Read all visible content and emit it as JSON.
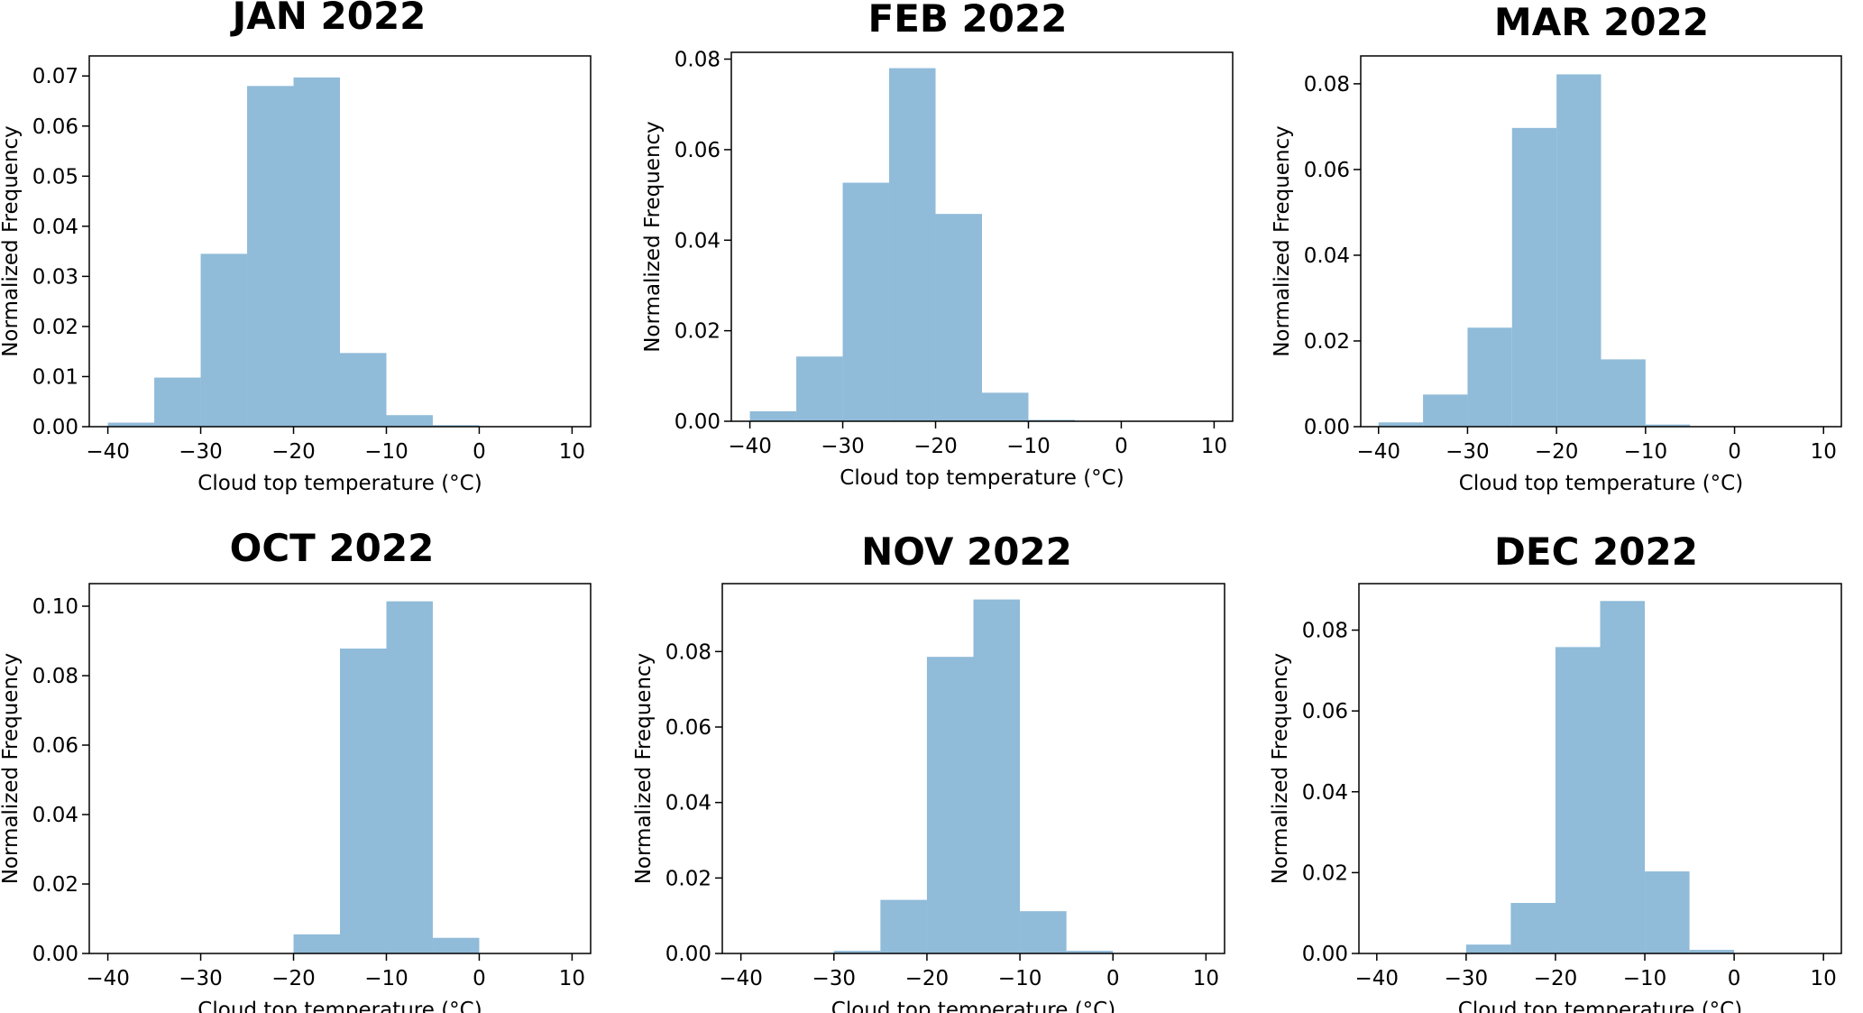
{
  "style": {
    "bar_color": "#90bbd9",
    "axis_color": "#000000",
    "background": "#ffffff"
  },
  "chart_data": [
    {
      "type": "bar",
      "title": "JAN 2022",
      "xlabel": "Cloud top temperature (°C)",
      "ylabel": "Normalized Frequency",
      "xlim": [
        -42,
        12
      ],
      "ylim": [
        0,
        0.074
      ],
      "xticks": [
        -40,
        -30,
        -20,
        -10,
        0,
        10
      ],
      "xtick_labels": [
        "−40",
        "−30",
        "−20",
        "−10",
        "0",
        "10"
      ],
      "yticks": [
        0,
        0.01,
        0.02,
        0.03,
        0.04,
        0.05,
        0.06,
        0.07
      ],
      "ytick_labels": [
        "0.00",
        "0.01",
        "0.02",
        "0.03",
        "0.04",
        "0.05",
        "0.06",
        "0.07"
      ],
      "bins": [
        [
          -40,
          -35
        ],
        [
          -35,
          -30
        ],
        [
          -30,
          -25
        ],
        [
          -25,
          -20
        ],
        [
          -20,
          -15
        ],
        [
          -15,
          -10
        ],
        [
          -10,
          -5
        ],
        [
          -5,
          0
        ]
      ],
      "values": [
        0.0008,
        0.0098,
        0.0345,
        0.068,
        0.0697,
        0.0147,
        0.0023,
        0.0003
      ]
    },
    {
      "type": "bar",
      "title": "FEB 2022",
      "xlabel": "Cloud top temperature (°C)",
      "ylabel": "Normalized Frequency",
      "xlim": [
        -42,
        12
      ],
      "ylim": [
        0,
        0.0815
      ],
      "xticks": [
        -40,
        -30,
        -20,
        -10,
        0,
        10
      ],
      "xtick_labels": [
        "−40",
        "−30",
        "−20",
        "−10",
        "0",
        "10"
      ],
      "yticks": [
        0,
        0.02,
        0.04,
        0.06,
        0.08
      ],
      "ytick_labels": [
        "0.00",
        "0.02",
        "0.04",
        "0.06",
        "0.08"
      ],
      "bins": [
        [
          -40,
          -35
        ],
        [
          -35,
          -30
        ],
        [
          -30,
          -25
        ],
        [
          -25,
          -20
        ],
        [
          -20,
          -15
        ],
        [
          -15,
          -10
        ],
        [
          -10,
          -5
        ]
      ],
      "values": [
        0.0022,
        0.0143,
        0.0527,
        0.078,
        0.0458,
        0.0063,
        0.0003
      ]
    },
    {
      "type": "bar",
      "title": "MAR 2022",
      "xlabel": "Cloud top temperature (°C)",
      "ylabel": "Normalized Frequency",
      "xlim": [
        -42,
        12
      ],
      "ylim": [
        0,
        0.0865
      ],
      "xticks": [
        -40,
        -30,
        -20,
        -10,
        0,
        10
      ],
      "xtick_labels": [
        "−40",
        "−30",
        "−20",
        "−10",
        "0",
        "10"
      ],
      "yticks": [
        0,
        0.02,
        0.04,
        0.06,
        0.08
      ],
      "ytick_labels": [
        "0.00",
        "0.02",
        "0.04",
        "0.06",
        "0.08"
      ],
      "bins": [
        [
          -40,
          -35
        ],
        [
          -35,
          -30
        ],
        [
          -30,
          -25
        ],
        [
          -25,
          -20
        ],
        [
          -20,
          -15
        ],
        [
          -15,
          -10
        ],
        [
          -10,
          -5
        ]
      ],
      "values": [
        0.001,
        0.0075,
        0.0231,
        0.0697,
        0.0822,
        0.0157,
        0.0005
      ]
    },
    {
      "type": "bar",
      "title": "OCT 2022",
      "xlabel": "Cloud top temperature (°C)",
      "ylabel": "Normalized Frequency",
      "xlim": [
        -42,
        12
      ],
      "ylim": [
        0,
        0.1065
      ],
      "xticks": [
        -40,
        -30,
        -20,
        -10,
        0,
        10
      ],
      "xtick_labels": [
        "−40",
        "−30",
        "−20",
        "−10",
        "0",
        "10"
      ],
      "yticks": [
        0,
        0.02,
        0.04,
        0.06,
        0.08,
        0.1
      ],
      "ytick_labels": [
        "0.00",
        "0.02",
        "0.04",
        "0.06",
        "0.08",
        "0.10"
      ],
      "bins": [
        [
          -20,
          -15
        ],
        [
          -15,
          -10
        ],
        [
          -10,
          -5
        ],
        [
          -5,
          0
        ]
      ],
      "values": [
        0.0055,
        0.0878,
        0.1014,
        0.0045
      ]
    },
    {
      "type": "bar",
      "title": "NOV 2022",
      "xlabel": "Cloud top temperature (°C)",
      "ylabel": "Normalized Frequency",
      "xlim": [
        -42,
        12
      ],
      "ylim": [
        0,
        0.098
      ],
      "xticks": [
        -40,
        -30,
        -20,
        -10,
        0,
        10
      ],
      "xtick_labels": [
        "−40",
        "−30",
        "−20",
        "−10",
        "0",
        "10"
      ],
      "yticks": [
        0,
        0.02,
        0.04,
        0.06,
        0.08
      ],
      "ytick_labels": [
        "0.00",
        "0.02",
        "0.04",
        "0.06",
        "0.08"
      ],
      "bins": [
        [
          -30,
          -25
        ],
        [
          -25,
          -20
        ],
        [
          -20,
          -15
        ],
        [
          -15,
          -10
        ],
        [
          -10,
          -5
        ],
        [
          -5,
          0
        ]
      ],
      "values": [
        0.0007,
        0.0142,
        0.0786,
        0.0938,
        0.0112,
        0.0007
      ]
    },
    {
      "type": "bar",
      "title": "DEC 2022",
      "xlabel": "Cloud top temperature (°C)",
      "ylabel": "Normalized Frequency",
      "xlim": [
        -42,
        12
      ],
      "ylim": [
        0,
        0.0915
      ],
      "xticks": [
        -40,
        -30,
        -20,
        -10,
        0,
        10
      ],
      "xtick_labels": [
        "−40",
        "−30",
        "−20",
        "−10",
        "0",
        "10"
      ],
      "yticks": [
        0,
        0.02,
        0.04,
        0.06,
        0.08
      ],
      "ytick_labels": [
        "0.00",
        "0.02",
        "0.04",
        "0.06",
        "0.08"
      ],
      "bins": [
        [
          -30,
          -25
        ],
        [
          -25,
          -20
        ],
        [
          -20,
          -15
        ],
        [
          -15,
          -10
        ],
        [
          -10,
          -5
        ],
        [
          -5,
          0
        ]
      ],
      "values": [
        0.0022,
        0.0125,
        0.0758,
        0.0872,
        0.0203,
        0.0009
      ]
    }
  ]
}
